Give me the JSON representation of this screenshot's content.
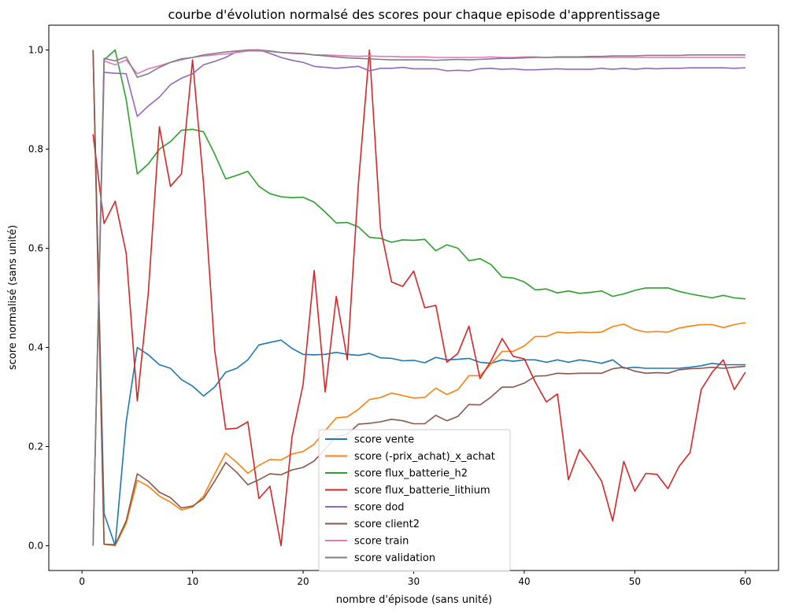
{
  "chart_data": {
    "type": "line",
    "title": "courbe d'évolution normalsé des scores pour chaque episode d'apprentissage",
    "xlabel": "nombre d'épisode (sans unité)",
    "ylabel": "score normalisé (sans unité)",
    "xlim": [
      -3,
      63
    ],
    "ylim": [
      -0.05,
      1.05
    ],
    "xticks": [
      "0",
      "10",
      "20",
      "30",
      "40",
      "50",
      "60"
    ],
    "yticks": [
      "0.0",
      "0.2",
      "0.4",
      "0.6",
      "0.8",
      "1.0"
    ],
    "legend_position": "bottom-center",
    "x": [
      1,
      2,
      3,
      4,
      5,
      6,
      7,
      8,
      9,
      10,
      11,
      12,
      13,
      14,
      15,
      16,
      17,
      18,
      19,
      20,
      21,
      22,
      23,
      24,
      25,
      26,
      27,
      28,
      29,
      30,
      31,
      32,
      33,
      34,
      35,
      36,
      37,
      38,
      39,
      40,
      41,
      42,
      43,
      44,
      45,
      46,
      47,
      48,
      49,
      50,
      51,
      52,
      53,
      54,
      55,
      56,
      57,
      58,
      59,
      60
    ],
    "series": [
      {
        "name": "score vente",
        "color": "#1f77b4",
        "values": [
          1.0,
          0.065,
          0.0,
          0.25,
          0.4,
          0.385,
          0.365,
          0.358,
          0.335,
          0.322,
          0.302,
          0.32,
          0.35,
          0.358,
          0.375,
          0.405,
          0.41,
          0.415,
          0.398,
          0.386,
          0.385,
          0.386,
          0.39,
          0.386,
          0.384,
          0.388,
          0.379,
          0.378,
          0.373,
          0.374,
          0.369,
          0.38,
          0.375,
          0.376,
          0.378,
          0.37,
          0.368,
          0.375,
          0.372,
          0.375,
          0.375,
          0.37,
          0.375,
          0.37,
          0.375,
          0.372,
          0.368,
          0.375,
          0.358,
          0.36,
          0.358,
          0.358,
          0.358,
          0.358,
          0.36,
          0.363,
          0.368,
          0.365,
          0.365,
          0.365
        ]
      },
      {
        "name": "score (-prix_achat)_x_achat",
        "color": "#ff7f0e",
        "values": [
          1.0,
          0.003,
          0.0,
          0.045,
          0.132,
          0.12,
          0.1,
          0.088,
          0.072,
          0.078,
          0.1,
          0.145,
          0.187,
          0.168,
          0.146,
          0.162,
          0.174,
          0.173,
          0.185,
          0.19,
          0.205,
          0.232,
          0.258,
          0.26,
          0.275,
          0.295,
          0.299,
          0.308,
          0.303,
          0.298,
          0.299,
          0.318,
          0.305,
          0.315,
          0.343,
          0.343,
          0.367,
          0.392,
          0.392,
          0.403,
          0.422,
          0.422,
          0.431,
          0.429,
          0.431,
          0.43,
          0.431,
          0.442,
          0.447,
          0.436,
          0.431,
          0.432,
          0.431,
          0.439,
          0.443,
          0.446,
          0.446,
          0.44,
          0.446,
          0.45
        ]
      },
      {
        "name": "score flux_batterie_h2",
        "color": "#2ca02c",
        "values": [
          0.0,
          0.98,
          1.0,
          0.9,
          0.75,
          0.77,
          0.8,
          0.815,
          0.838,
          0.84,
          0.835,
          0.79,
          0.74,
          0.747,
          0.755,
          0.725,
          0.71,
          0.704,
          0.702,
          0.703,
          0.693,
          0.673,
          0.651,
          0.652,
          0.643,
          0.622,
          0.62,
          0.612,
          0.617,
          0.616,
          0.618,
          0.595,
          0.607,
          0.6,
          0.575,
          0.579,
          0.567,
          0.542,
          0.54,
          0.532,
          0.516,
          0.518,
          0.51,
          0.514,
          0.509,
          0.511,
          0.514,
          0.503,
          0.508,
          0.515,
          0.52,
          0.52,
          0.52,
          0.513,
          0.508,
          0.504,
          0.5,
          0.505,
          0.5,
          0.498
        ]
      },
      {
        "name": "score flux_batterie_lithium",
        "color": "#d62728",
        "values": [
          0.83,
          0.65,
          0.695,
          0.59,
          0.292,
          0.51,
          0.845,
          0.725,
          0.75,
          0.98,
          0.73,
          0.395,
          0.235,
          0.237,
          0.25,
          0.095,
          0.12,
          0.0,
          0.22,
          0.325,
          0.555,
          0.31,
          0.503,
          0.375,
          0.73,
          1.0,
          0.64,
          0.532,
          0.523,
          0.554,
          0.48,
          0.485,
          0.37,
          0.388,
          0.443,
          0.337,
          0.373,
          0.418,
          0.382,
          0.377,
          0.33,
          0.29,
          0.306,
          0.133,
          0.194,
          0.165,
          0.13,
          0.05,
          0.17,
          0.11,
          0.146,
          0.144,
          0.115,
          0.16,
          0.188,
          0.315,
          0.35,
          0.375,
          0.315,
          0.35
        ]
      },
      {
        "name": "score dod",
        "color": "#9467bd",
        "values": [
          0.0,
          0.955,
          0.953,
          0.952,
          0.866,
          0.887,
          0.905,
          0.93,
          0.943,
          0.952,
          0.97,
          0.977,
          0.985,
          0.997,
          1.0,
          1.0,
          0.993,
          0.985,
          0.979,
          0.975,
          0.967,
          0.965,
          0.963,
          0.965,
          0.967,
          0.958,
          0.963,
          0.963,
          0.965,
          0.962,
          0.962,
          0.962,
          0.958,
          0.959,
          0.958,
          0.962,
          0.963,
          0.961,
          0.962,
          0.96,
          0.96,
          0.961,
          0.962,
          0.961,
          0.961,
          0.961,
          0.963,
          0.961,
          0.963,
          0.961,
          0.963,
          0.962,
          0.963,
          0.963,
          0.964,
          0.964,
          0.964,
          0.964,
          0.963,
          0.964
        ]
      },
      {
        "name": "score client2",
        "color": "#8c564b",
        "values": [
          1.0,
          0.003,
          0.002,
          0.05,
          0.145,
          0.13,
          0.108,
          0.097,
          0.076,
          0.08,
          0.095,
          0.13,
          0.168,
          0.148,
          0.123,
          0.133,
          0.145,
          0.143,
          0.153,
          0.158,
          0.171,
          0.195,
          0.22,
          0.225,
          0.245,
          0.247,
          0.25,
          0.255,
          0.252,
          0.246,
          0.246,
          0.263,
          0.252,
          0.261,
          0.285,
          0.284,
          0.3,
          0.32,
          0.32,
          0.328,
          0.342,
          0.343,
          0.348,
          0.347,
          0.348,
          0.348,
          0.348,
          0.357,
          0.36,
          0.352,
          0.348,
          0.349,
          0.348,
          0.355,
          0.357,
          0.358,
          0.36,
          0.358,
          0.36,
          0.362
        ]
      },
      {
        "name": "score train",
        "color": "#e377c2",
        "values": [
          0.0,
          0.978,
          0.97,
          0.98,
          0.952,
          0.962,
          0.968,
          0.975,
          0.98,
          0.985,
          0.988,
          0.99,
          0.992,
          0.995,
          0.998,
          0.998,
          0.997,
          0.995,
          0.993,
          0.992,
          0.99,
          0.99,
          0.989,
          0.988,
          0.987,
          0.988,
          0.987,
          0.987,
          0.986,
          0.986,
          0.986,
          0.985,
          0.985,
          0.985,
          0.985,
          0.985,
          0.986,
          0.985,
          0.985,
          0.986,
          0.986,
          0.985,
          0.985,
          0.985,
          0.985,
          0.985,
          0.985,
          0.985,
          0.985,
          0.985,
          0.985,
          0.985,
          0.985,
          0.985,
          0.985,
          0.985,
          0.985,
          0.985,
          0.985,
          0.985
        ]
      },
      {
        "name": "score validation",
        "color": "#7f7f7f",
        "values": [
          0.0,
          0.983,
          0.978,
          0.986,
          0.945,
          0.952,
          0.965,
          0.975,
          0.982,
          0.985,
          0.99,
          0.993,
          0.996,
          0.998,
          1.0,
          1.0,
          0.998,
          0.995,
          0.994,
          0.993,
          0.99,
          0.988,
          0.986,
          0.984,
          0.983,
          0.982,
          0.981,
          0.98,
          0.98,
          0.98,
          0.98,
          0.979,
          0.98,
          0.981,
          0.98,
          0.981,
          0.982,
          0.983,
          0.983,
          0.984,
          0.985,
          0.985,
          0.986,
          0.986,
          0.986,
          0.987,
          0.987,
          0.988,
          0.988,
          0.988,
          0.989,
          0.989,
          0.989,
          0.989,
          0.99,
          0.99,
          0.99,
          0.99,
          0.99,
          0.99
        ]
      }
    ]
  }
}
